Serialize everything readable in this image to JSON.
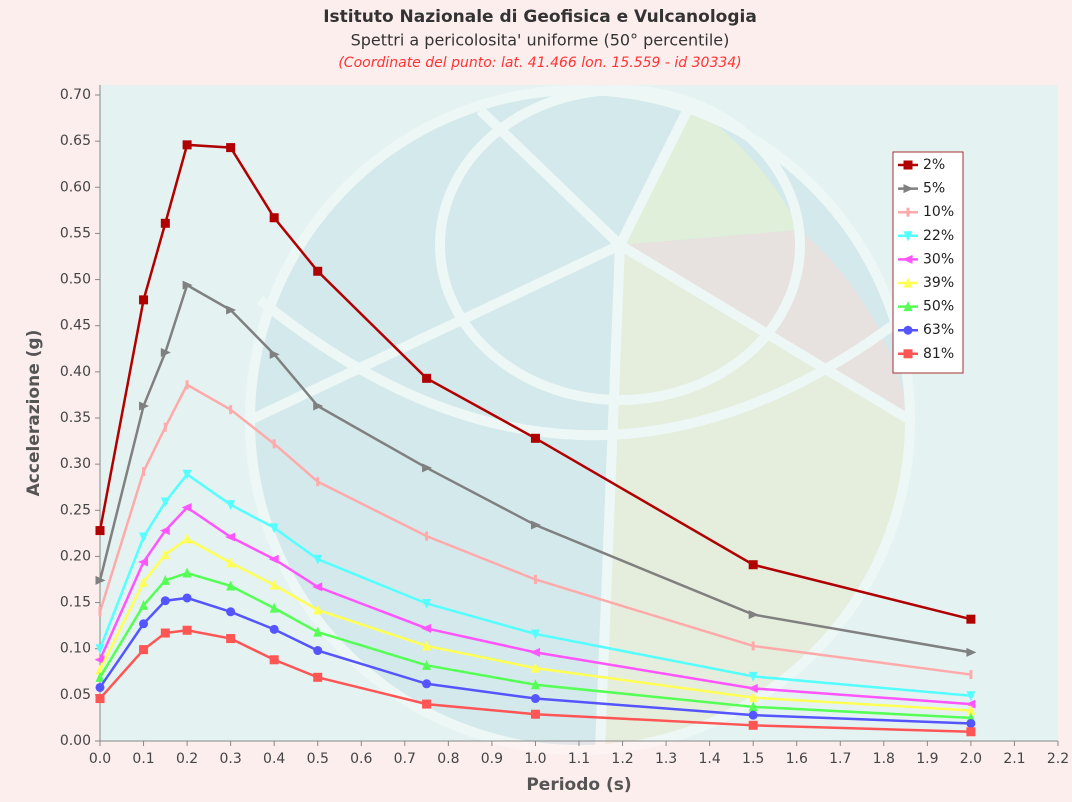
{
  "chart_data": {
    "type": "line",
    "title": "Istituto Nazionale di Geofisica e Vulcanologia",
    "subtitle": "Spettri a pericolosita' uniforme (50° percentile)",
    "annotation": "(Coordinate del punto: lat. 41.466 lon. 15.559 - id 30334)",
    "xlabel": "Periodo (s)",
    "ylabel": "Accelerazione (g)",
    "x": [
      0,
      0.1,
      0.15,
      0.2,
      0.3,
      0.4,
      0.5,
      0.75,
      1.0,
      1.5,
      2.0
    ],
    "xlim": [
      0,
      2.2
    ],
    "xticks": [
      {
        "value": 0,
        "label": "0.0"
      },
      0.1,
      0.2,
      0.3,
      0.4,
      0.5,
      0.6,
      0.7,
      0.8,
      0.9,
      {
        "value": 1,
        "label": "1.0"
      },
      1.1,
      1.2,
      1.3,
      1.4,
      1.5,
      1.6,
      1.7,
      1.8,
      1.9,
      {
        "value": 2,
        "label": "2.0"
      },
      2.1,
      2.2
    ],
    "ylim": [
      0,
      0.7
    ],
    "yticks": [
      {
        "value": 0,
        "label": "0.00"
      },
      {
        "value": 0.05,
        "label": "0.05"
      },
      {
        "value": 0.1,
        "label": "0.10"
      },
      {
        "value": 0.15,
        "label": "0.15"
      },
      {
        "value": 0.2,
        "label": "0.20"
      },
      {
        "value": 0.25,
        "label": "0.25"
      },
      {
        "value": 0.3,
        "label": "0.30"
      },
      {
        "value": 0.35,
        "label": "0.35"
      },
      {
        "value": 0.4,
        "label": "0.40"
      },
      {
        "value": 0.45,
        "label": "0.45"
      },
      {
        "value": 0.5,
        "label": "0.50"
      },
      {
        "value": 0.55,
        "label": "0.55"
      },
      {
        "value": 0.6,
        "label": "0.60"
      },
      {
        "value": 0.65,
        "label": "0.65"
      },
      {
        "value": 0.7,
        "label": "0.70"
      }
    ],
    "legend": "upper right",
    "series": [
      {
        "name": "2%",
        "color": "#b00000",
        "marker": "square",
        "values": [
          0.228,
          0.478,
          0.561,
          0.646,
          0.643,
          0.567,
          0.509,
          0.393,
          0.328,
          0.191,
          0.132
        ]
      },
      {
        "name": "5%",
        "color": "#808080",
        "marker": "triangle-right",
        "values": [
          0.174,
          0.363,
          0.421,
          0.494,
          0.467,
          0.419,
          0.363,
          0.296,
          0.234,
          0.137,
          0.096
        ]
      },
      {
        "name": "10%",
        "color": "#ffaaaa",
        "marker": "dash",
        "values": [
          0.14,
          0.292,
          0.34,
          0.386,
          0.359,
          0.322,
          0.281,
          0.222,
          0.175,
          0.103,
          0.072
        ]
      },
      {
        "name": "22%",
        "color": "#55ffff",
        "marker": "triangle-down",
        "values": [
          0.1,
          0.221,
          0.259,
          0.289,
          0.256,
          0.231,
          0.197,
          0.149,
          0.116,
          0.07,
          0.049
        ]
      },
      {
        "name": "30%",
        "color": "#ff55ff",
        "marker": "triangle-left",
        "values": [
          0.088,
          0.194,
          0.228,
          0.253,
          0.221,
          0.197,
          0.167,
          0.122,
          0.096,
          0.057,
          0.04
        ]
      },
      {
        "name": "39%",
        "color": "#ffff55",
        "marker": "triangle-up",
        "values": [
          0.077,
          0.172,
          0.202,
          0.219,
          0.193,
          0.169,
          0.142,
          0.103,
          0.079,
          0.047,
          0.033
        ]
      },
      {
        "name": "50%",
        "color": "#55ff55",
        "marker": "triangle-up",
        "values": [
          0.069,
          0.147,
          0.174,
          0.182,
          0.168,
          0.144,
          0.118,
          0.082,
          0.061,
          0.037,
          0.025
        ]
      },
      {
        "name": "63%",
        "color": "#5555ff",
        "marker": "circle",
        "values": [
          0.058,
          0.127,
          0.152,
          0.155,
          0.14,
          0.121,
          0.098,
          0.062,
          0.046,
          0.028,
          0.019
        ]
      },
      {
        "name": "81%",
        "color": "#ff5555",
        "marker": "square",
        "values": [
          0.046,
          0.099,
          0.117,
          0.12,
          0.111,
          0.088,
          0.069,
          0.04,
          0.029,
          0.017,
          0.01
        ]
      }
    ]
  }
}
